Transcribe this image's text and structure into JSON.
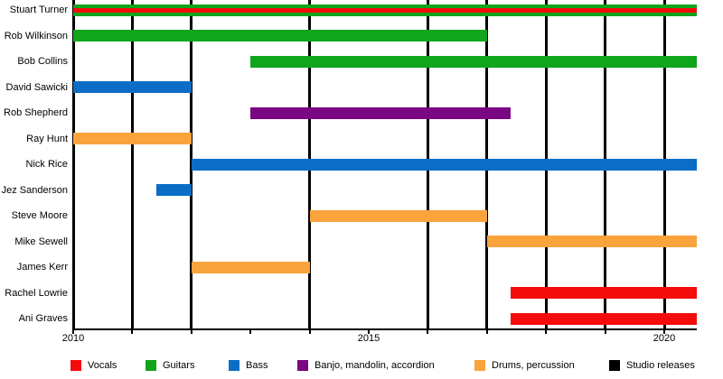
{
  "chart_data": {
    "type": "bar",
    "subtype": "timeline-gantt-band-members",
    "x_axis": {
      "start": 2010,
      "end": 2020.55,
      "tick_values": [
        2010,
        2015,
        2020
      ],
      "tick_labels": [
        "2010",
        "2015",
        "2020"
      ],
      "minor_tick_interval": 1
    },
    "members": [
      {
        "name": "Stuart Turner",
        "segments": [
          {
            "role": "Guitars",
            "start": 2010,
            "end": 2020.55
          },
          {
            "role": "Vocals",
            "start": 2010,
            "end": 2020.55,
            "overlay": true
          }
        ]
      },
      {
        "name": "Rob Wilkinson",
        "segments": [
          {
            "role": "Guitars",
            "start": 2010,
            "end": 2017
          }
        ]
      },
      {
        "name": "Bob Collins",
        "segments": [
          {
            "role": "Guitars",
            "start": 2013,
            "end": 2020.55
          }
        ]
      },
      {
        "name": "David Sawicki",
        "segments": [
          {
            "role": "Bass",
            "start": 2010,
            "end": 2012
          }
        ]
      },
      {
        "name": "Rob Shepherd",
        "segments": [
          {
            "role": "Banjo, mandolin, accordion",
            "start": 2013,
            "end": 2017.4
          }
        ]
      },
      {
        "name": "Ray Hunt",
        "segments": [
          {
            "role": "Drums, percussion",
            "start": 2010,
            "end": 2012
          }
        ]
      },
      {
        "name": "Nick Rice",
        "segments": [
          {
            "role": "Bass",
            "start": 2012,
            "end": 2020.55
          }
        ]
      },
      {
        "name": "Jez Sanderson",
        "segments": [
          {
            "role": "Bass",
            "start": 2011.4,
            "end": 2012
          }
        ]
      },
      {
        "name": "Steve Moore",
        "segments": [
          {
            "role": "Drums, percussion",
            "start": 2014,
            "end": 2017
          }
        ]
      },
      {
        "name": "Mike Sewell",
        "segments": [
          {
            "role": "Drums, percussion",
            "start": 2017,
            "end": 2020.55
          }
        ]
      },
      {
        "name": "James Kerr",
        "segments": [
          {
            "role": "Drums, percussion",
            "start": 2012,
            "end": 2014
          }
        ]
      },
      {
        "name": "Rachel Lowrie",
        "segments": [
          {
            "role": "Vocals",
            "start": 2017.4,
            "end": 2020.55
          }
        ]
      },
      {
        "name": "Ani Graves",
        "segments": [
          {
            "role": "Vocals",
            "start": 2017.4,
            "end": 2020.55
          }
        ]
      }
    ],
    "studio_releases": [
      2010,
      2011,
      2012,
      2014,
      2016,
      2017,
      2018,
      2019,
      2020
    ],
    "colors": {
      "Vocals": "#F40B0B",
      "Guitars": "#10A51B",
      "Bass": "#0B6DC5",
      "Banjo, mandolin, accordion": "#7B0681",
      "Drums, percussion": "#F9A33C",
      "Studio releases": "#000000"
    },
    "legend": [
      {
        "label": "Vocals",
        "color": "#F40B0B"
      },
      {
        "label": "Guitars",
        "color": "#10A51B"
      },
      {
        "label": "Bass",
        "color": "#0B6DC5"
      },
      {
        "label": "Banjo, mandolin, accordion",
        "color": "#7B0681"
      },
      {
        "label": "Drums, percussion",
        "color": "#F9A33C"
      },
      {
        "label": "Studio releases",
        "color": "#000000"
      }
    ],
    "grid": false,
    "legend_position": "bottom"
  }
}
